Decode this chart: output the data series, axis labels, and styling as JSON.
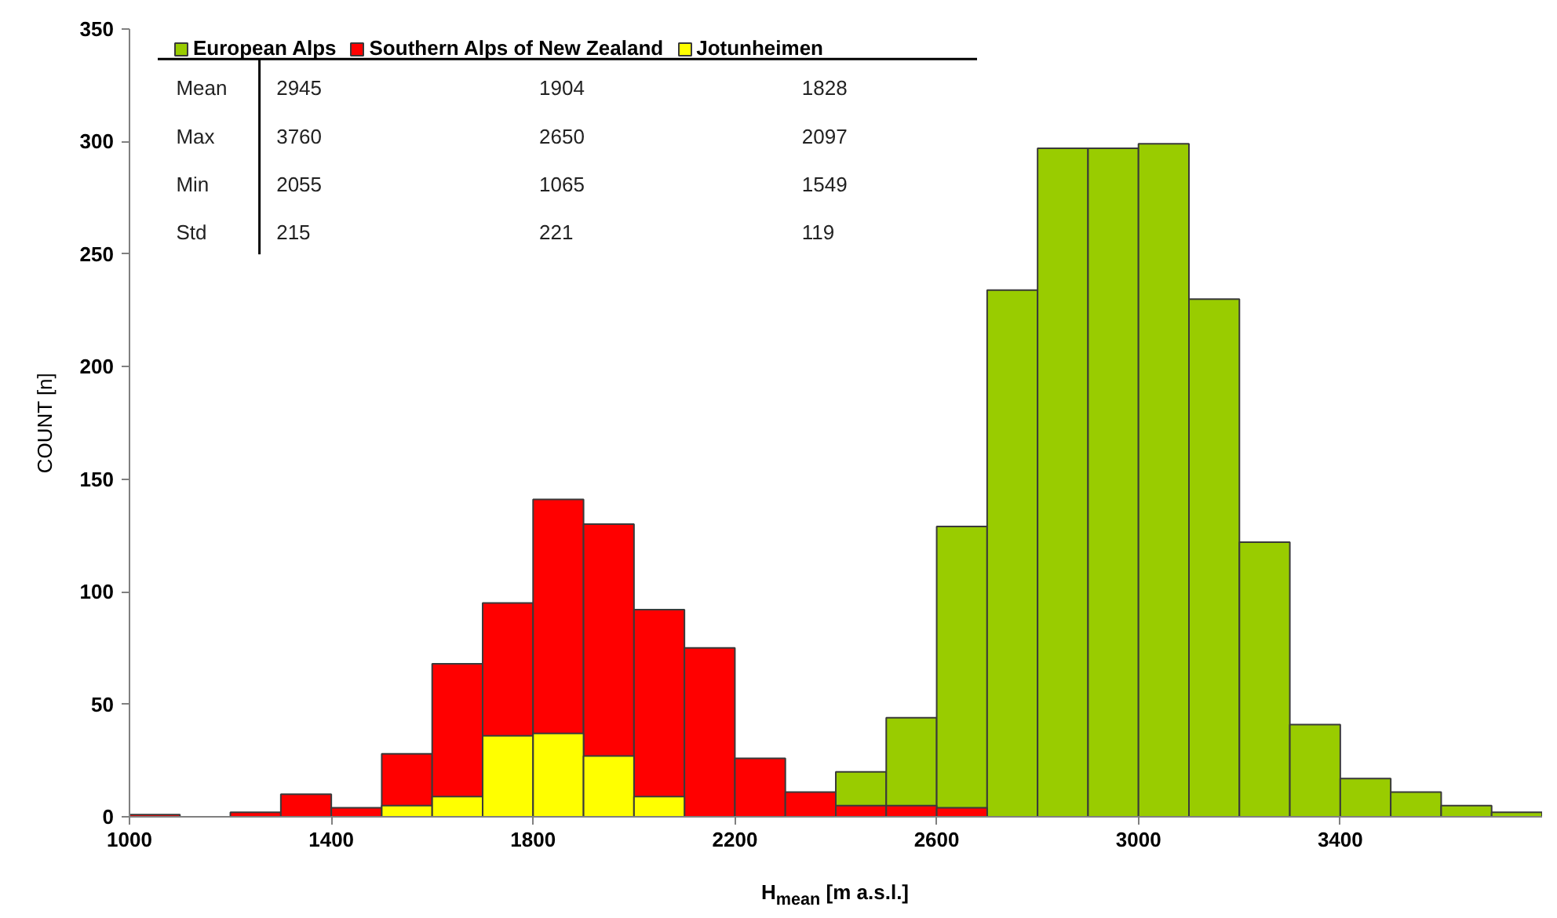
{
  "chart_data": {
    "type": "histogram",
    "xlabel": "H$_{mean}$ [m a.s.l.]",
    "ylabel": "COUNT [n]",
    "bins": [
      1000,
      1100,
      1200,
      1300,
      1400,
      1500,
      1600,
      1700,
      1800,
      1900,
      2000,
      2100,
      2200,
      2300,
      2400,
      2500,
      2600,
      2700,
      2800,
      2900,
      3000,
      3100,
      3200,
      3300,
      3400,
      3500,
      3600,
      3700,
      3800
    ],
    "series": [
      {
        "name": "European Alps",
        "color": "#99cc00",
        "values": [
          null,
          null,
          null,
          null,
          null,
          null,
          null,
          null,
          null,
          null,
          null,
          null,
          null,
          null,
          20,
          44,
          129,
          234,
          297,
          297,
          299,
          230,
          122,
          41,
          17,
          11,
          5,
          2
        ]
      },
      {
        "name": "Southern Alps of New Zealand",
        "color": "#ff0000",
        "values": [
          1,
          null,
          2,
          10,
          4,
          28,
          68,
          95,
          141,
          130,
          92,
          75,
          26,
          11,
          5,
          5,
          4,
          null,
          null,
          null,
          null,
          null,
          null,
          null,
          null,
          null,
          null,
          null
        ]
      },
      {
        "name": "Jotunheimen",
        "color": "#ffff00",
        "values": [
          null,
          null,
          null,
          null,
          null,
          5,
          9,
          36,
          37,
          27,
          9,
          null,
          null,
          null,
          null,
          null,
          null,
          null,
          null,
          null,
          null,
          null,
          null,
          null,
          null,
          null,
          null,
          null
        ]
      }
    ],
    "xlim": [
      1000,
      3800
    ],
    "ylim": [
      0,
      350
    ],
    "xticks": [
      1000,
      1400,
      1800,
      2200,
      2600,
      3000,
      3400
    ],
    "yticks": [
      0,
      50,
      100,
      150,
      200,
      250,
      300,
      350
    ],
    "grid": false,
    "legend": "top left",
    "annotations": [
      "Mean",
      "2945",
      "1904",
      "1828",
      "Max",
      "3760",
      "2650",
      "2097",
      "Min",
      "2055",
      "1065",
      "1549",
      "Std",
      "215",
      "221",
      "119"
    ]
  }
}
